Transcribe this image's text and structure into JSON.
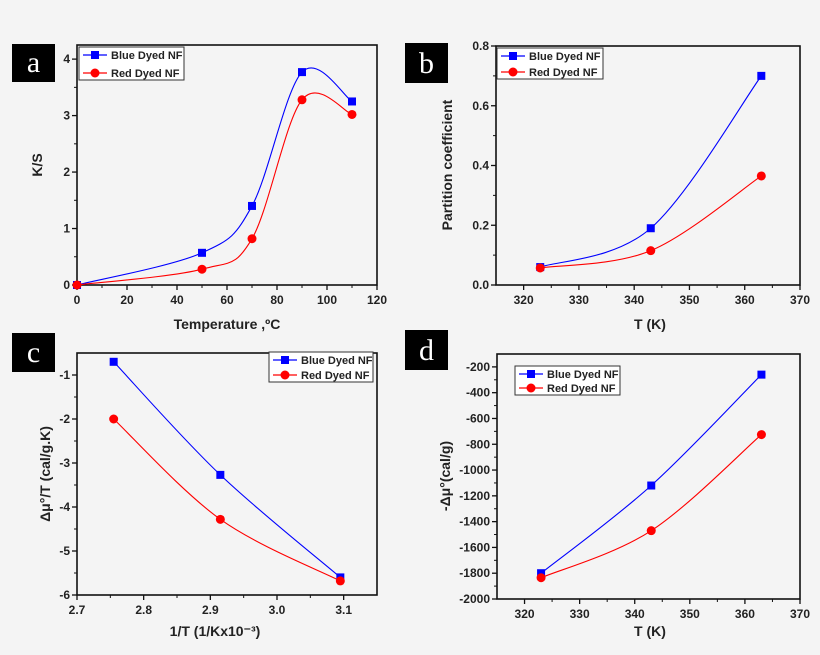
{
  "chart_data": [
    {
      "type": "line",
      "panel_label": "a",
      "xlabel": "Temperature ,ºC",
      "ylabel": "K/S",
      "xlim": [
        0,
        120
      ],
      "ylim": [
        0,
        4.25
      ],
      "xticks": [
        "0",
        "20",
        "40",
        "60",
        "80",
        "100",
        "120"
      ],
      "yticks": [
        "0",
        "1",
        "2",
        "3",
        "4"
      ],
      "grid": false,
      "legend": "top-left",
      "series": [
        {
          "name": "Blue Dyed NF",
          "color": "#0000ff",
          "marker": "square",
          "x": [
            0,
            50,
            70,
            90,
            110
          ],
          "y": [
            0,
            0.57,
            1.4,
            3.77,
            3.25
          ]
        },
        {
          "name": "Red Dyed NF",
          "color": "#ff0000",
          "marker": "circle",
          "x": [
            0,
            50,
            70,
            90,
            110
          ],
          "y": [
            0,
            0.28,
            0.82,
            3.28,
            3.02
          ]
        }
      ]
    },
    {
      "type": "line",
      "panel_label": "b",
      "xlabel": "T (K)",
      "ylabel": "Partition coefficient",
      "xlim": [
        315,
        370
      ],
      "ylim": [
        0,
        0.8
      ],
      "xticks": [
        "320",
        "330",
        "340",
        "350",
        "360",
        "370"
      ],
      "yticks": [
        "0.0",
        "0.2",
        "0.4",
        "0.6",
        "0.8"
      ],
      "grid": false,
      "legend": "top-left",
      "series": [
        {
          "name": "Blue Dyed NF",
          "color": "#0000ff",
          "marker": "square",
          "x": [
            323,
            343,
            363
          ],
          "y": [
            0.06,
            0.19,
            0.7
          ]
        },
        {
          "name": "Red Dyed NF",
          "color": "#ff0000",
          "marker": "circle",
          "x": [
            323,
            343,
            363
          ],
          "y": [
            0.057,
            0.115,
            0.365
          ]
        }
      ]
    },
    {
      "type": "line",
      "panel_label": "c",
      "xlabel": "1/T (1/Kx10⁻³)",
      "ylabel": "Δμ°/T (cal/g.K)",
      "xlim": [
        2.7,
        3.15
      ],
      "ylim": [
        -6,
        -0.5
      ],
      "xticks": [
        "2.7",
        "2.8",
        "2.9",
        "3.0",
        "3.1"
      ],
      "yticks": [
        "-6",
        "-5",
        "-4",
        "-3",
        "-2",
        "-1"
      ],
      "grid": false,
      "legend": "top-right",
      "series": [
        {
          "name": "Blue Dyed NF",
          "color": "#0000ff",
          "marker": "square",
          "x": [
            2.755,
            2.915,
            3.095
          ],
          "y": [
            -0.7,
            -3.27,
            -5.6
          ]
        },
        {
          "name": "Red Dyed NF",
          "color": "#ff0000",
          "marker": "circle",
          "x": [
            2.755,
            2.915,
            3.095
          ],
          "y": [
            -2.0,
            -4.28,
            -5.68
          ]
        }
      ]
    },
    {
      "type": "line",
      "panel_label": "d",
      "xlabel": "T (K)",
      "ylabel": "-Δμ°(cal/g)",
      "xlim": [
        315,
        370
      ],
      "ylim": [
        -2000,
        -100
      ],
      "xticks": [
        "320",
        "330",
        "340",
        "350",
        "360",
        "370"
      ],
      "yticks": [
        "-2000",
        "-1800",
        "-1600",
        "-1400",
        "-1200",
        "-1000",
        "-800",
        "-600",
        "-400",
        "-200"
      ],
      "grid": false,
      "legend": "top-left",
      "series": [
        {
          "name": "Blue Dyed NF",
          "color": "#0000ff",
          "marker": "square",
          "x": [
            323,
            343,
            363
          ],
          "y": [
            -1800,
            -1120,
            -260
          ]
        },
        {
          "name": "Red Dyed NF",
          "color": "#ff0000",
          "marker": "circle",
          "x": [
            323,
            343,
            363
          ],
          "y": [
            -1835,
            -1470,
            -725
          ]
        }
      ]
    }
  ]
}
